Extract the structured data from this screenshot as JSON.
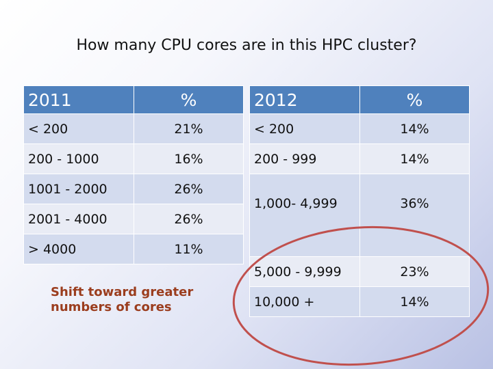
{
  "title": "How many CPU cores are in this HPC cluster?",
  "table_2011": {
    "headers": [
      "2011",
      "%"
    ],
    "rows": [
      [
        "< 200",
        "21%"
      ],
      [
        "200 - 1000",
        "16%"
      ],
      [
        "1001 - 2000",
        "26%"
      ],
      [
        "2001 - 4000",
        "26%"
      ],
      [
        "> 4000",
        "11%"
      ]
    ]
  },
  "table_2012": {
    "headers": [
      "2012",
      "%"
    ],
    "rows": [
      [
        "< 200",
        "14%"
      ],
      [
        "200 - 999",
        "14%"
      ],
      [
        "1,000- 4,999",
        "36%"
      ],
      [
        "5,000 - 9,999",
        "23%"
      ],
      [
        "10,000 +",
        "14%"
      ]
    ]
  },
  "note": {
    "line1": "Shift toward greater",
    "line2": "numbers of cores"
  },
  "colors": {
    "header": "#4f81bd",
    "row_dark": "#d3dbee",
    "row_light": "#e9ecf5",
    "note": "#9b3d1e",
    "ellipse": "#c0504d"
  }
}
